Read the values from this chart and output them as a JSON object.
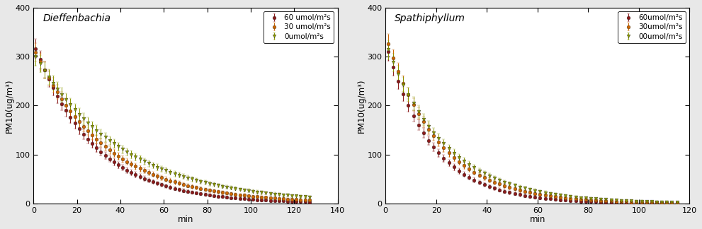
{
  "left": {
    "title": "Dieffenbachia",
    "xlabel": "min",
    "ylabel": "PM10(ug/m³)",
    "xlim": [
      0,
      140
    ],
    "ylim": [
      0,
      400
    ],
    "xticks": [
      0,
      20,
      40,
      60,
      80,
      100,
      120,
      140
    ],
    "yticks": [
      0,
      100,
      200,
      300,
      400
    ],
    "series": [
      {
        "label": "60 umol/m²s",
        "color": "#8B1A1A",
        "marker": "o",
        "k": 0.0365,
        "y0": 328,
        "x_max": 127
      },
      {
        "label": "30 umol/m²s",
        "color": "#CC6600",
        "marker": "o",
        "k": 0.0305,
        "y0": 318,
        "x_max": 127
      },
      {
        "label": "0umol/m²s",
        "color": "#8B9900",
        "marker": "v",
        "k": 0.025,
        "y0": 308,
        "x_max": 127
      }
    ]
  },
  "right": {
    "title": "Spathiphyllum",
    "xlabel": "min",
    "ylabel": "PM10(ug/m³)",
    "xlim": [
      0,
      120
    ],
    "ylim": [
      0,
      400
    ],
    "xticks": [
      0,
      20,
      40,
      60,
      80,
      100,
      120
    ],
    "yticks": [
      0,
      100,
      200,
      300,
      400
    ],
    "series": [
      {
        "label": "60umol/m²s",
        "color": "#8B1A1A",
        "marker": "o",
        "k": 0.055,
        "y0": 328,
        "x_max": 115
      },
      {
        "label": "30umol/m²s",
        "color": "#CC6600",
        "marker": "o",
        "k": 0.048,
        "y0": 343,
        "x_max": 115
      },
      {
        "label": "00umol/m²s",
        "color": "#8B9900",
        "marker": "v",
        "k": 0.043,
        "y0": 328,
        "x_max": 115
      }
    ]
  },
  "bg_color": "#e8e8e8",
  "plot_bg": "#ffffff",
  "line_width": 0.7,
  "errorbar_capsize": 1.5,
  "marker_size": 3.5,
  "step": 2
}
